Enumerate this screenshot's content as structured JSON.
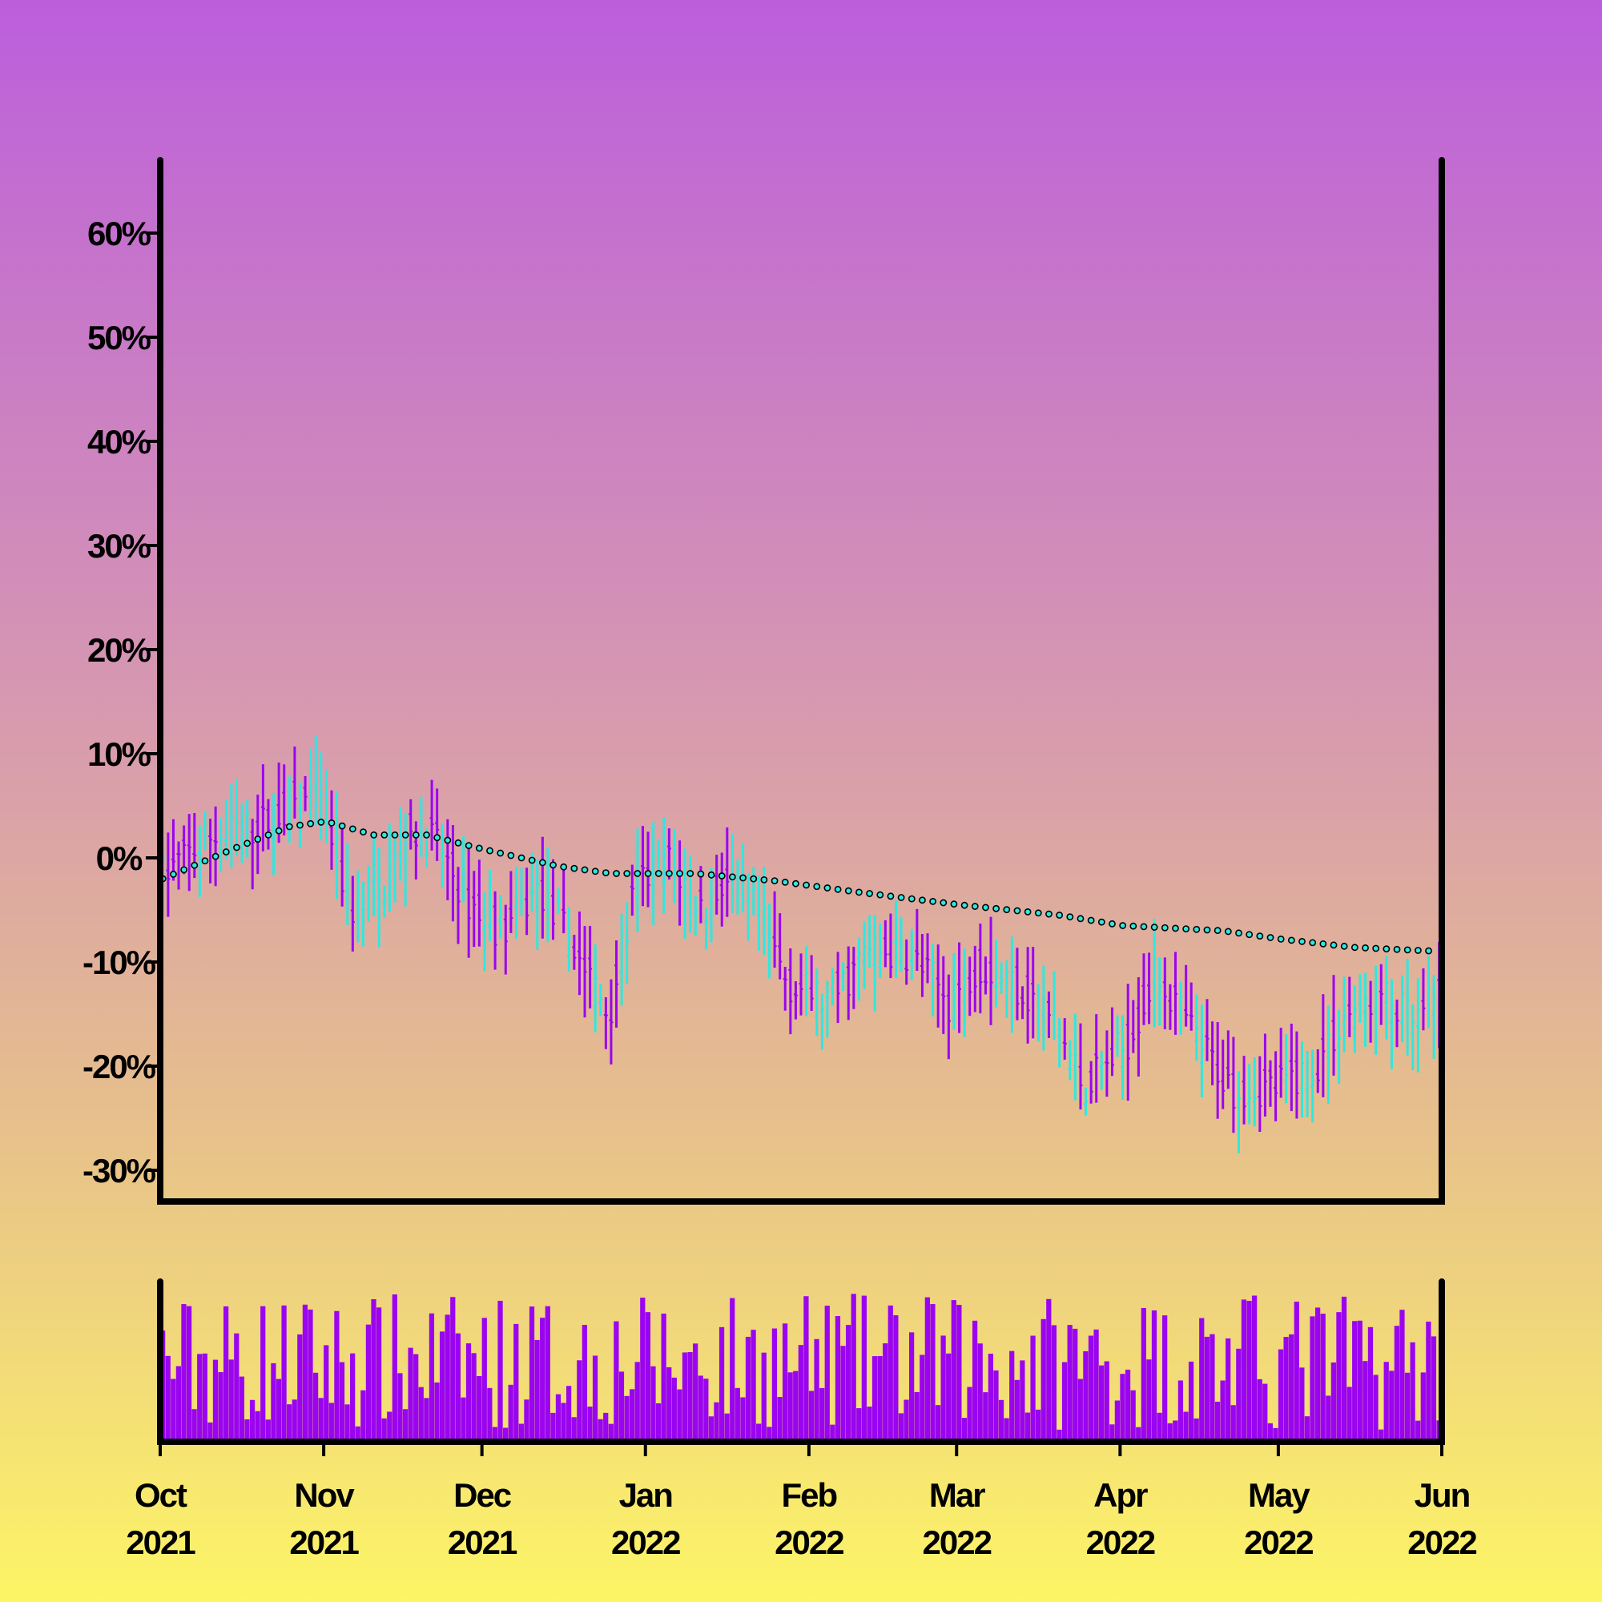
{
  "chart_data": {
    "type": "ohlc",
    "subtype": "ohlc-with-moving-average-and-volume",
    "x_axis": {
      "type": "date",
      "range": [
        "2021-10-01",
        "2022-06-01"
      ],
      "ticks": [
        {
          "date": "2021-10-01",
          "month": "Oct",
          "year": "2021"
        },
        {
          "date": "2021-11-01",
          "month": "Nov",
          "year": "2021"
        },
        {
          "date": "2021-12-01",
          "month": "Dec",
          "year": "2021"
        },
        {
          "date": "2022-01-01",
          "month": "Jan",
          "year": "2022"
        },
        {
          "date": "2022-02-01",
          "month": "Feb",
          "year": "2022"
        },
        {
          "date": "2022-03-01",
          "month": "Mar",
          "year": "2022"
        },
        {
          "date": "2022-04-01",
          "month": "Apr",
          "year": "2022"
        },
        {
          "date": "2022-05-01",
          "month": "May",
          "year": "2022"
        },
        {
          "date": "2022-06-01",
          "month": "Jun",
          "year": "2022"
        }
      ]
    },
    "y_axis": {
      "unit": "%",
      "range": [
        -33,
        67
      ],
      "ticks": [
        {
          "value": 60,
          "label": "60%"
        },
        {
          "value": 50,
          "label": "50%"
        },
        {
          "value": 40,
          "label": "40%"
        },
        {
          "value": 30,
          "label": "30%"
        },
        {
          "value": 20,
          "label": "20%"
        },
        {
          "value": 10,
          "label": "10%"
        },
        {
          "value": 0,
          "label": "0%"
        },
        {
          "value": -10,
          "label": "-10%"
        },
        {
          "value": -20,
          "label": "-20%"
        },
        {
          "value": -30,
          "label": "-30%"
        }
      ]
    },
    "grid": false,
    "legend": "none",
    "colors": {
      "up": "#2de8e0",
      "down": "#9a04f0",
      "volume": "#9a04f0",
      "moving_average": "#2de8e0",
      "axes": "#000000"
    },
    "ohlc_shape": [
      [
        "2021-10-01",
        -2
      ],
      [
        "2021-10-10",
        2
      ],
      [
        "2021-10-20",
        3
      ],
      [
        "2021-10-28",
        6
      ],
      [
        "2021-11-01",
        5
      ],
      [
        "2021-11-06",
        -5
      ],
      [
        "2021-11-12",
        -3
      ],
      [
        "2021-11-18",
        3
      ],
      [
        "2021-11-22",
        2
      ],
      [
        "2021-11-28",
        -4
      ],
      [
        "2021-12-05",
        -7
      ],
      [
        "2021-12-12",
        -3
      ],
      [
        "2021-12-18",
        -8
      ],
      [
        "2021-12-25",
        -15
      ],
      [
        "2021-12-30",
        -3
      ],
      [
        "2022-01-05",
        0
      ],
      [
        "2022-01-12",
        -5
      ],
      [
        "2022-01-16",
        -2
      ],
      [
        "2022-01-22",
        -5
      ],
      [
        "2022-01-28",
        -12
      ],
      [
        "2022-02-05",
        -14
      ],
      [
        "2022-02-12",
        -9
      ],
      [
        "2022-02-20",
        -9
      ],
      [
        "2022-02-28",
        -14
      ],
      [
        "2022-03-05",
        -10
      ],
      [
        "2022-03-12",
        -12
      ],
      [
        "2022-03-20",
        -16
      ],
      [
        "2022-03-25",
        -22
      ],
      [
        "2022-04-02",
        -18
      ],
      [
        "2022-04-08",
        -11
      ],
      [
        "2022-04-15",
        -17
      ],
      [
        "2022-04-22",
        -22
      ],
      [
        "2022-05-01",
        -22
      ],
      [
        "2022-05-08",
        -20
      ],
      [
        "2022-05-14",
        -15
      ],
      [
        "2022-05-20",
        -13
      ],
      [
        "2022-05-27",
        -16
      ],
      [
        "2022-06-01",
        -13
      ]
    ],
    "moving_average": [
      [
        "2021-10-01",
        -2
      ],
      [
        "2021-10-15",
        1
      ],
      [
        "2021-10-25",
        3
      ],
      [
        "2021-11-01",
        3.5
      ],
      [
        "2021-11-10",
        2.2
      ],
      [
        "2021-11-20",
        2.2
      ],
      [
        "2021-12-01",
        0.8
      ],
      [
        "2021-12-15",
        -0.8
      ],
      [
        "2021-12-25",
        -1.5
      ],
      [
        "2022-01-10",
        -1.5
      ],
      [
        "2022-01-25",
        -2.2
      ],
      [
        "2022-02-10",
        -3.3
      ],
      [
        "2022-03-01",
        -4.5
      ],
      [
        "2022-03-20",
        -5.5
      ],
      [
        "2022-04-01",
        -6.5
      ],
      [
        "2022-04-20",
        -7
      ],
      [
        "2022-05-01",
        -7.8
      ],
      [
        "2022-05-15",
        -8.6
      ],
      [
        "2022-06-01",
        -9
      ]
    ],
    "volume": {
      "relative_range": [
        0,
        1
      ]
    }
  }
}
